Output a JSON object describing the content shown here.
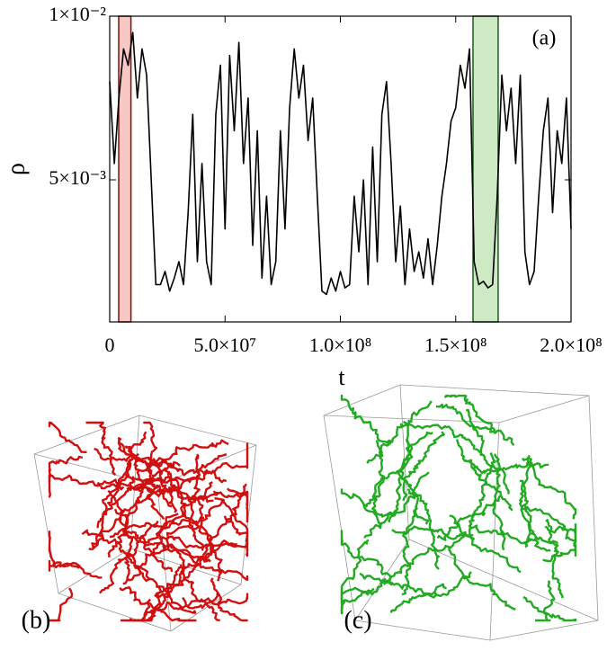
{
  "chart_data": {
    "type": "line",
    "panel_label": "(a)",
    "x_label": "t",
    "y_label": "ρ",
    "xlim": [
      0,
      200000000.0
    ],
    "ylim": [
      0.00066,
      0.01
    ],
    "xticks": [
      0,
      {
        "value": 50000000.0,
        "label": "5.0×10⁷"
      },
      {
        "value": 100000000.0,
        "label": "1.0×10⁸"
      },
      {
        "value": 150000000.0,
        "label": "1.5×10⁸"
      },
      {
        "value": 200000000.0,
        "label": "2.0×10⁸"
      }
    ],
    "yticks": [
      {
        "value": 0.005,
        "label": "5×10⁻³"
      },
      {
        "value": 0.01,
        "label": "1×10⁻²"
      }
    ],
    "highlights": [
      {
        "color": "#f8c8c4",
        "edge": "#7a1010",
        "xrange": [
          3900000.0,
          9200000.0
        ]
      },
      {
        "color": "#cdeac4",
        "edge": "#1d5a1d",
        "xrange": [
          157500000.0,
          168400000.0
        ]
      }
    ],
    "x": [
      0,
      2000000.0,
      4000000.0,
      6000000.0,
      8000000.0,
      10000000.0,
      12000000.0,
      14000000.0,
      16000000.0,
      18000000.0,
      20000000.0,
      22000000.0,
      24000000.0,
      26000000.0,
      28000000.0,
      30000000.0,
      32000000.0,
      34000000.0,
      36000000.0,
      38000000.0,
      40000000.0,
      42000000.0,
      44000000.0,
      46000000.0,
      48000000.0,
      50000000.0,
      52000000.0,
      54000000.0,
      56000000.0,
      58000000.0,
      60000000.0,
      62000000.0,
      64000000.0,
      66000000.0,
      68000000.0,
      70000000.0,
      72000000.0,
      74000000.0,
      76000000.0,
      78000000.0,
      80000000.0,
      82000000.0,
      84000000.0,
      86000000.0,
      88000000.0,
      90000000.0,
      92000000.0,
      94000000.0,
      96000000.0,
      98000000.0,
      100000000.0,
      102000000.0,
      104000000.0,
      106000000.0,
      108000000.0,
      110000000.0,
      112000000.0,
      114000000.0,
      116000000.0,
      118000000.0,
      120000000.0,
      122000000.0,
      124000000.0,
      126000000.0,
      128000000.0,
      130000000.0,
      132000000.0,
      134000000.0,
      136000000.0,
      138000000.0,
      140000000.0,
      142000000.0,
      144000000.0,
      146000000.0,
      148000000.0,
      150000000.0,
      152000000.0,
      154000000.0,
      156000000.0,
      158000000.0,
      160000000.0,
      162000000.0,
      164000000.0,
      166000000.0,
      168000000.0,
      170000000.0,
      172000000.0,
      174000000.0,
      176000000.0,
      178000000.0,
      180000000.0,
      182000000.0,
      184000000.0,
      186000000.0,
      188000000.0,
      190000000.0,
      192000000.0,
      194000000.0,
      196000000.0,
      198000000.0,
      200000000.0
    ],
    "series": [
      {
        "color": "#000000",
        "values": [
          0.008,
          0.0055,
          0.0075,
          0.009,
          0.0085,
          0.0095,
          0.0075,
          0.009,
          0.0082,
          0.005,
          0.0018,
          0.0018,
          0.0022,
          0.0016,
          0.002,
          0.0025,
          0.0018,
          0.004,
          0.007,
          0.0025,
          0.0055,
          0.0025,
          0.0018,
          0.007,
          0.0085,
          0.0035,
          0.0088,
          0.0065,
          0.0092,
          0.0055,
          0.0075,
          0.003,
          0.0065,
          0.002,
          0.0045,
          0.0018,
          0.0025,
          0.0065,
          0.0035,
          0.0072,
          0.009,
          0.0075,
          0.0085,
          0.0062,
          0.0075,
          0.0045,
          0.0016,
          0.0015,
          0.002,
          0.0016,
          0.0022,
          0.0017,
          0.0018,
          0.0045,
          0.0028,
          0.005,
          0.0018,
          0.006,
          0.0025,
          0.007,
          0.008,
          0.0055,
          0.0025,
          0.0042,
          0.0018,
          0.0035,
          0.0022,
          0.0028,
          0.002,
          0.0032,
          0.0018,
          0.003,
          0.0045,
          0.0055,
          0.0068,
          0.0072,
          0.0085,
          0.0078,
          0.009,
          0.0025,
          0.0018,
          0.0019,
          0.0017,
          0.0018,
          0.0045,
          0.0082,
          0.0065,
          0.0078,
          0.0055,
          0.0082,
          0.0028,
          0.0018,
          0.0022,
          0.0045,
          0.0065,
          0.0075,
          0.004,
          0.0065,
          0.0055,
          0.0075,
          0.0035
        ]
      }
    ]
  },
  "panels": [
    {
      "label": "(b)",
      "color": "#d01010"
    },
    {
      "label": "(c)",
      "color": "#22aa22"
    }
  ]
}
